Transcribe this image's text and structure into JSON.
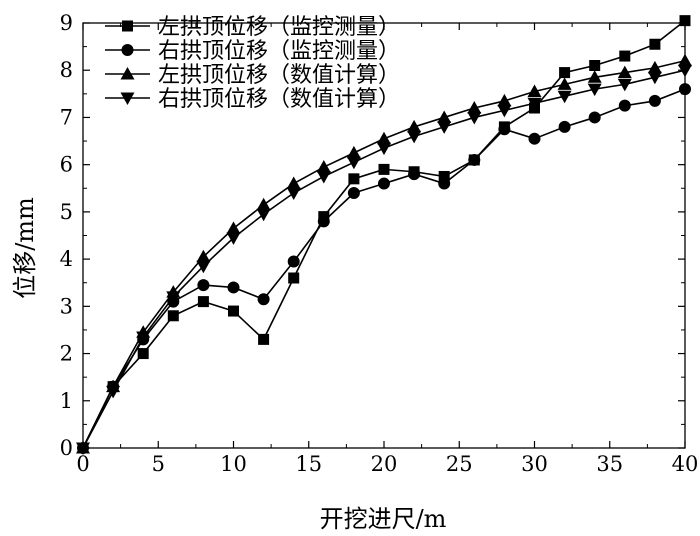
{
  "chart_data": {
    "type": "line",
    "xlabel": "开挖进尺/m",
    "ylabel": "位移/mm",
    "xlim": [
      0,
      40
    ],
    "ylim": [
      0,
      9
    ],
    "x_ticks": [
      0,
      5,
      10,
      15,
      20,
      25,
      30,
      35,
      40
    ],
    "y_ticks": [
      0,
      1,
      2,
      3,
      4,
      5,
      6,
      7,
      8,
      9
    ],
    "grid": false,
    "legend_position": "top-left",
    "series": [
      {
        "name": "左拱顶位移（监控测量）",
        "marker": "square",
        "x": [
          0,
          2,
          4,
          6,
          8,
          10,
          12,
          14,
          16,
          18,
          20,
          22,
          24,
          26,
          28,
          30,
          32,
          34,
          36,
          38,
          40
        ],
        "y": [
          0,
          1.3,
          2.0,
          2.8,
          3.1,
          2.9,
          2.3,
          3.6,
          4.9,
          5.7,
          5.9,
          5.85,
          5.75,
          6.1,
          6.8,
          7.2,
          7.95,
          8.1,
          8.3,
          8.55,
          9.05
        ]
      },
      {
        "name": "右拱顶位移（监控测量）",
        "marker": "circle",
        "x": [
          0,
          2,
          4,
          6,
          8,
          10,
          12,
          14,
          16,
          18,
          20,
          22,
          24,
          26,
          28,
          30,
          32,
          34,
          36,
          38,
          40
        ],
        "y": [
          0,
          1.3,
          2.3,
          3.1,
          3.45,
          3.4,
          3.15,
          3.95,
          4.8,
          5.4,
          5.6,
          5.8,
          5.6,
          6.1,
          6.75,
          6.55,
          6.8,
          7.0,
          7.25,
          7.35,
          7.6
        ]
      },
      {
        "name": "左拱顶位移（数值计算）",
        "marker": "triangle-up",
        "x": [
          0,
          2,
          4,
          6,
          8,
          10,
          12,
          14,
          16,
          18,
          20,
          22,
          24,
          26,
          28,
          30,
          32,
          34,
          36,
          38,
          40
        ],
        "y": [
          0,
          1.3,
          2.45,
          3.3,
          4.05,
          4.65,
          5.15,
          5.6,
          5.95,
          6.25,
          6.55,
          6.8,
          7.0,
          7.2,
          7.35,
          7.55,
          7.7,
          7.85,
          7.95,
          8.05,
          8.2
        ]
      },
      {
        "name": "右拱顶位移（数值计算）",
        "marker": "triangle-down",
        "x": [
          0,
          2,
          4,
          6,
          8,
          10,
          12,
          14,
          16,
          18,
          20,
          22,
          24,
          26,
          28,
          30,
          32,
          34,
          36,
          38,
          40
        ],
        "y": [
          0,
          1.2,
          2.35,
          3.2,
          3.85,
          4.45,
          4.95,
          5.4,
          5.75,
          6.05,
          6.35,
          6.6,
          6.8,
          7.0,
          7.15,
          7.3,
          7.45,
          7.6,
          7.7,
          7.85,
          8.0
        ]
      }
    ]
  }
}
